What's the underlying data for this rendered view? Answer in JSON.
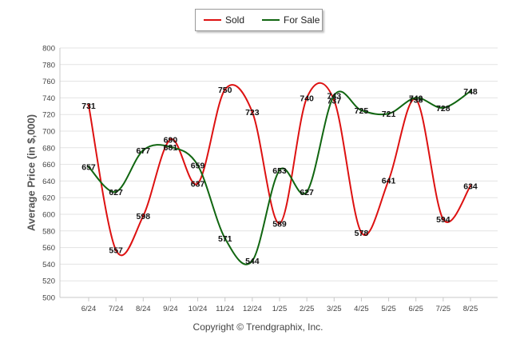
{
  "chart_data": {
    "type": "line",
    "title": "",
    "xlabel": "",
    "ylabel": "Average Price (in $,000)",
    "ylim": [
      500,
      800
    ],
    "ytick_step": 20,
    "grid": true,
    "legend_position": "top-center",
    "categories": [
      "6/24",
      "7/24",
      "8/24",
      "9/24",
      "10/24",
      "11/24",
      "12/24",
      "1/25",
      "2/25",
      "3/25",
      "4/25",
      "5/25",
      "6/25",
      "7/25",
      "8/25"
    ],
    "series": [
      {
        "name": "Sold",
        "color": "#dd1111",
        "values": [
          731,
          557,
          598,
          690,
          637,
          750,
          723,
          589,
          740,
          737,
          578,
          641,
          738,
          594,
          634
        ]
      },
      {
        "name": "For Sale",
        "color": "#116611",
        "values": [
          657,
          627,
          677,
          681,
          659,
          571,
          544,
          653,
          627,
          743,
          725,
          721,
          740,
          728,
          748
        ]
      }
    ]
  },
  "legend": [
    {
      "label": "Sold",
      "color": "#dd1111"
    },
    {
      "label": "For Sale",
      "color": "#116611"
    }
  ],
  "credit": "Copyright © Trendgraphix, Inc."
}
